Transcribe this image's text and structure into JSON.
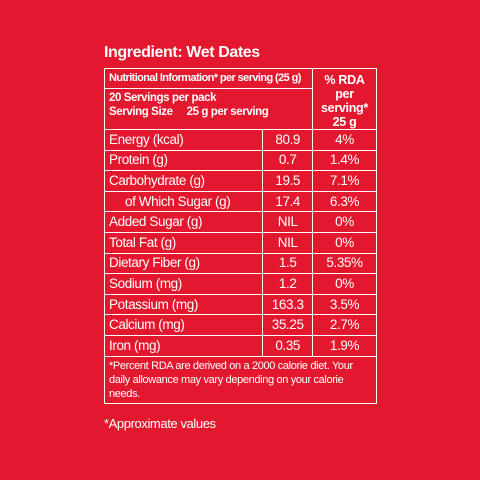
{
  "title": "Ingredient: Wet Dates",
  "table": {
    "header": {
      "nutrition_info": "Nutritional Information* per serving (25 g)",
      "servings_per_pack": "20 Servings per pack",
      "serving_size_label": "Serving Size",
      "serving_size_value": "25 g per serving",
      "rda_header": "% RDA per serving*",
      "rda_serving": "25 g"
    },
    "rows": [
      [
        "Energy (kcal)",
        "80.9",
        "4%"
      ],
      [
        "Protein (g)",
        "0.7",
        "1.4%"
      ],
      [
        "Carbohydrate (g)",
        "19.5",
        "7.1%"
      ],
      [
        "of Which Sugar (g)",
        "17.4",
        "6.3%"
      ],
      [
        "Added Sugar (g)",
        "NIL",
        "0%"
      ],
      [
        "Total Fat (g)",
        "NIL",
        "0%"
      ],
      [
        "Dietary Fiber (g)",
        "1.5",
        "5.35%"
      ],
      [
        "Sodium (mg)",
        "1.2",
        "0%"
      ],
      [
        "Potassium (mg)",
        "163.3",
        "3.5%"
      ],
      [
        "Calcium (mg)",
        "35.25",
        "2.7%"
      ],
      [
        "Iron (mg)",
        "0.35",
        "1.9%"
      ]
    ],
    "footnote": "*Percent RDA are derived on a 2000 calorie diet. Your daily allowance may vary depending on your calorie needs."
  },
  "note": "*Approximate values"
}
